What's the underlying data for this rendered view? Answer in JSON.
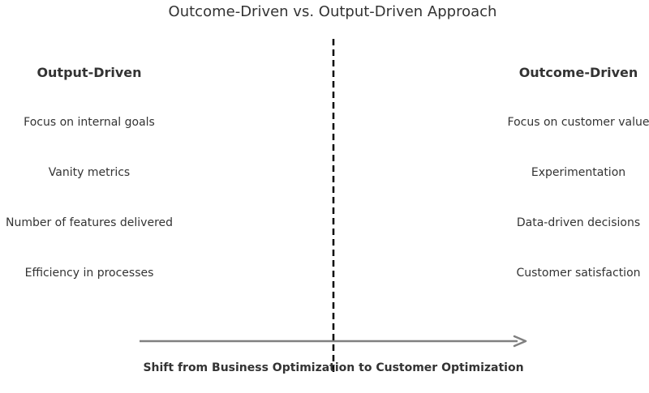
{
  "title": "Outcome-Driven vs. Output-Driven Approach",
  "left": {
    "heading": "Output-Driven",
    "items": [
      "Focus on internal goals",
      "Vanity metrics",
      "Number of features delivered",
      "Efficiency in processes"
    ]
  },
  "right": {
    "heading": "Outcome-Driven",
    "items": [
      "Focus on customer value",
      "Experimentation",
      "Data-driven decisions",
      "Customer satisfaction"
    ]
  },
  "arrow_caption": "Shift from Business Optimization to Customer Optimization",
  "colors": {
    "text": "#333333",
    "divider": "#000000",
    "arrow": "#808080"
  }
}
